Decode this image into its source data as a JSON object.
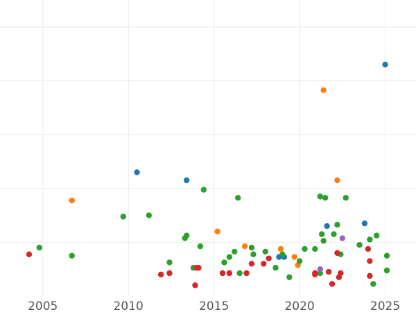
{
  "chart_data": {
    "type": "scatter",
    "title": "",
    "xlabel": "",
    "ylabel": "",
    "xlim": [
      2002.5,
      2026.8
    ],
    "ylim": [
      0,
      11
    ],
    "grid": true,
    "legend": "none",
    "x_ticks": [
      2005,
      2010,
      2015,
      2020,
      2025
    ],
    "x_tick_labels": [
      "2005",
      "2010",
      "2015",
      "2020",
      "2025"
    ],
    "y_gridlines": [
      2,
      4,
      6,
      8,
      10
    ],
    "colors": {
      "blue": "#1f77b4",
      "orange": "#ff7f0e",
      "green": "#2ca02c",
      "red": "#d62728",
      "purple": "#9467bd"
    },
    "series": [
      {
        "color": "#1f77b4",
        "points": [
          [
            2010.5,
            4.6
          ],
          [
            2013.4,
            4.3
          ],
          [
            2018.8,
            1.45
          ],
          [
            2019.1,
            1.45
          ],
          [
            2021.6,
            2.6
          ],
          [
            2023.8,
            2.7
          ],
          [
            2025.0,
            8.6
          ]
        ]
      },
      {
        "color": "#ff7f0e",
        "points": [
          [
            2006.7,
            3.55
          ],
          [
            2015.2,
            2.4
          ],
          [
            2016.8,
            1.85
          ],
          [
            2018.9,
            1.75
          ],
          [
            2019.7,
            1.45
          ],
          [
            2019.9,
            1.15
          ],
          [
            2021.4,
            7.65
          ],
          [
            2022.2,
            4.3
          ]
        ]
      },
      {
        "color": "#2ca02c",
        "points": [
          [
            2004.8,
            1.8
          ],
          [
            2006.7,
            1.5
          ],
          [
            2009.7,
            2.95
          ],
          [
            2011.2,
            3.0
          ],
          [
            2012.4,
            1.25
          ],
          [
            2013.3,
            2.15
          ],
          [
            2013.4,
            2.25
          ],
          [
            2013.8,
            1.05
          ],
          [
            2014.2,
            1.85
          ],
          [
            2014.4,
            3.95
          ],
          [
            2015.6,
            1.25
          ],
          [
            2015.9,
            1.45
          ],
          [
            2016.2,
            1.65
          ],
          [
            2016.4,
            3.65
          ],
          [
            2016.5,
            0.85
          ],
          [
            2017.2,
            1.8
          ],
          [
            2017.3,
            1.55
          ],
          [
            2018.0,
            1.65
          ],
          [
            2018.6,
            1.05
          ],
          [
            2019.0,
            1.55
          ],
          [
            2019.4,
            0.7
          ],
          [
            2020.0,
            1.3
          ],
          [
            2020.3,
            1.75
          ],
          [
            2020.9,
            1.75
          ],
          [
            2021.2,
            3.7
          ],
          [
            2021.3,
            2.3
          ],
          [
            2021.4,
            2.05
          ],
          [
            2021.5,
            3.65
          ],
          [
            2022.0,
            2.3
          ],
          [
            2022.2,
            2.65
          ],
          [
            2022.4,
            1.55
          ],
          [
            2022.7,
            3.65
          ],
          [
            2023.5,
            1.9
          ],
          [
            2024.1,
            2.1
          ],
          [
            2024.3,
            0.45
          ],
          [
            2024.5,
            2.25
          ],
          [
            2025.1,
            1.5
          ],
          [
            2025.1,
            0.95
          ],
          [
            2021.2,
            0.85
          ]
        ]
      },
      {
        "color": "#d62728",
        "points": [
          [
            2004.2,
            1.55
          ],
          [
            2011.9,
            0.8
          ],
          [
            2012.4,
            0.85
          ],
          [
            2013.9,
            0.4
          ],
          [
            2014.0,
            1.05
          ],
          [
            2014.1,
            1.05
          ],
          [
            2015.5,
            0.85
          ],
          [
            2015.9,
            0.85
          ],
          [
            2016.9,
            0.85
          ],
          [
            2017.2,
            1.2
          ],
          [
            2017.9,
            1.2
          ],
          [
            2018.2,
            1.4
          ],
          [
            2020.9,
            0.85
          ],
          [
            2020.9,
            0.8
          ],
          [
            2021.7,
            0.9
          ],
          [
            2021.9,
            0.45
          ],
          [
            2022.2,
            1.6
          ],
          [
            2022.3,
            0.7
          ],
          [
            2022.4,
            0.85
          ],
          [
            2024.0,
            1.75
          ],
          [
            2024.1,
            1.3
          ],
          [
            2024.1,
            0.75
          ]
        ]
      },
      {
        "color": "#9467bd",
        "points": [
          [
            2021.2,
            1.0
          ],
          [
            2022.5,
            2.15
          ]
        ]
      }
    ]
  }
}
